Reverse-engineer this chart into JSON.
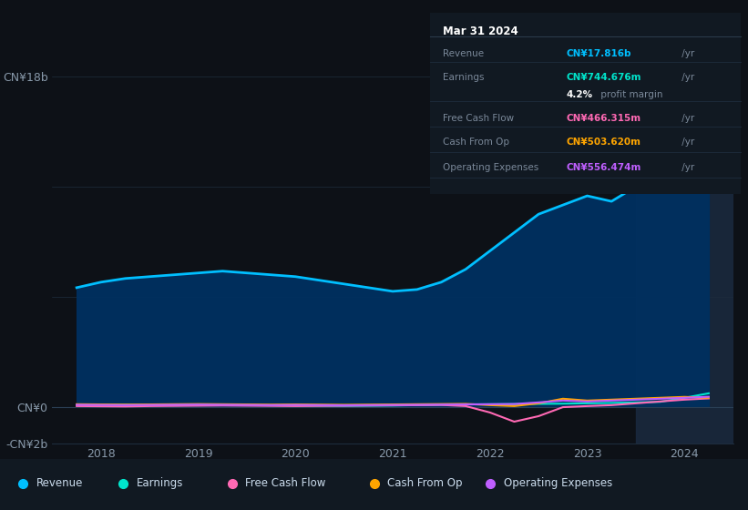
{
  "bg_color": "#0d1117",
  "plot_bg_color": "#0d1117",
  "tooltip": {
    "title": "Mar 31 2024",
    "rows": [
      {
        "label": "Revenue",
        "value": "CN¥17.816b",
        "color": "#00bfff"
      },
      {
        "label": "Earnings",
        "value": "CN¥744.676m",
        "color": "#00e5cc"
      },
      {
        "label": "",
        "value": "4.2% profit margin",
        "color": "#ffffff"
      },
      {
        "label": "Free Cash Flow",
        "value": "CN¥466.315m",
        "color": "#ff69b4"
      },
      {
        "label": "Cash From Op",
        "value": "CN¥503.620m",
        "color": "#ffa500"
      },
      {
        "label": "Operating Expenses",
        "value": "CN¥556.474m",
        "color": "#bf5fff"
      }
    ]
  },
  "ylim": [
    -2000000000,
    18000000000
  ],
  "ytick_labels": [
    "-CN¥2b",
    "CN¥0",
    "CN¥18b"
  ],
  "ytick_vals": [
    -2000000000,
    0,
    18000000000
  ],
  "xlim": [
    2017.5,
    2024.5
  ],
  "xticks": [
    2018,
    2019,
    2020,
    2021,
    2022,
    2023,
    2024
  ],
  "legend": [
    {
      "label": "Revenue",
      "color": "#00bfff"
    },
    {
      "label": "Earnings",
      "color": "#00e5cc"
    },
    {
      "label": "Free Cash Flow",
      "color": "#ff69b4"
    },
    {
      "label": "Cash From Op",
      "color": "#ffa500"
    },
    {
      "label": "Operating Expenses",
      "color": "#bf5fff"
    }
  ],
  "revenue_x": [
    2017.75,
    2018.0,
    2018.25,
    2018.5,
    2018.75,
    2019.0,
    2019.25,
    2019.5,
    2019.75,
    2020.0,
    2020.25,
    2020.5,
    2020.75,
    2021.0,
    2021.25,
    2021.5,
    2021.75,
    2022.0,
    2022.25,
    2022.5,
    2022.75,
    2023.0,
    2023.25,
    2023.5,
    2023.75,
    2024.0,
    2024.25
  ],
  "revenue_y": [
    6500000000,
    6800000000,
    7000000000,
    7100000000,
    7200000000,
    7300000000,
    7400000000,
    7300000000,
    7200000000,
    7100000000,
    6900000000,
    6700000000,
    6500000000,
    6300000000,
    6400000000,
    6800000000,
    7500000000,
    8500000000,
    9500000000,
    10500000000,
    11000000000,
    11500000000,
    11200000000,
    12000000000,
    13500000000,
    16000000000,
    17816000000
  ],
  "revenue_color": "#00bfff",
  "revenue_fill": "#003060",
  "earnings_x": [
    2017.75,
    2018.0,
    2018.25,
    2018.5,
    2018.75,
    2019.0,
    2019.25,
    2019.5,
    2019.75,
    2020.0,
    2020.25,
    2020.5,
    2020.75,
    2021.0,
    2021.25,
    2021.5,
    2021.75,
    2022.0,
    2022.25,
    2022.5,
    2022.75,
    2023.0,
    2023.25,
    2023.5,
    2023.75,
    2024.0,
    2024.25
  ],
  "earnings_y": [
    100000000,
    120000000,
    130000000,
    110000000,
    90000000,
    100000000,
    110000000,
    100000000,
    90000000,
    80000000,
    70000000,
    60000000,
    70000000,
    80000000,
    100000000,
    120000000,
    140000000,
    150000000,
    160000000,
    170000000,
    180000000,
    200000000,
    220000000,
    250000000,
    280000000,
    500000000,
    744676000
  ],
  "earnings_color": "#00e5cc",
  "fcf_x": [
    2017.75,
    2018.0,
    2018.25,
    2018.5,
    2018.75,
    2019.0,
    2019.25,
    2019.5,
    2019.75,
    2020.0,
    2020.25,
    2020.5,
    2020.75,
    2021.0,
    2021.25,
    2021.5,
    2021.75,
    2022.0,
    2022.25,
    2022.5,
    2022.75,
    2023.0,
    2023.25,
    2023.5,
    2023.75,
    2024.0,
    2024.25
  ],
  "fcf_y": [
    50000000,
    40000000,
    30000000,
    50000000,
    60000000,
    70000000,
    80000000,
    70000000,
    60000000,
    50000000,
    60000000,
    70000000,
    80000000,
    90000000,
    100000000,
    110000000,
    50000000,
    -300000000,
    -800000000,
    -500000000,
    -10000000,
    50000000,
    100000000,
    200000000,
    300000000,
    400000000,
    466315000
  ],
  "fcf_color": "#ff69b4",
  "cfop_x": [
    2017.75,
    2018.0,
    2018.25,
    2018.5,
    2018.75,
    2019.0,
    2019.25,
    2019.5,
    2019.75,
    2020.0,
    2020.25,
    2020.5,
    2020.75,
    2021.0,
    2021.25,
    2021.5,
    2021.75,
    2022.0,
    2022.25,
    2022.5,
    2022.75,
    2023.0,
    2023.25,
    2023.5,
    2023.75,
    2024.0,
    2024.25
  ],
  "cfop_y": [
    150000000,
    140000000,
    130000000,
    140000000,
    150000000,
    160000000,
    150000000,
    140000000,
    130000000,
    140000000,
    130000000,
    120000000,
    130000000,
    140000000,
    150000000,
    160000000,
    170000000,
    100000000,
    50000000,
    200000000,
    450000000,
    350000000,
    400000000,
    450000000,
    500000000,
    550000000,
    503620000
  ],
  "cfop_color": "#ffa500",
  "opex_x": [
    2017.75,
    2018.0,
    2018.25,
    2018.5,
    2018.75,
    2019.0,
    2019.25,
    2019.5,
    2019.75,
    2020.0,
    2020.25,
    2020.5,
    2020.75,
    2021.0,
    2021.25,
    2021.5,
    2021.75,
    2022.0,
    2022.25,
    2022.5,
    2022.75,
    2023.0,
    2023.25,
    2023.5,
    2023.75,
    2024.0,
    2024.25
  ],
  "opex_y": [
    120000000,
    110000000,
    100000000,
    110000000,
    120000000,
    130000000,
    120000000,
    110000000,
    100000000,
    110000000,
    100000000,
    90000000,
    100000000,
    110000000,
    120000000,
    130000000,
    140000000,
    150000000,
    160000000,
    250000000,
    350000000,
    300000000,
    350000000,
    400000000,
    450000000,
    500000000,
    556474000
  ],
  "opex_color": "#bf5fff",
  "shaded_x_start": 2023.5,
  "shaded_x_end": 2024.5,
  "grid_color": "#1e2d3d",
  "zero_line_color": "#2a3f55",
  "tooltip_bg": "#111922",
  "tooltip_border": "#2a3a4a",
  "legend_bg": "#111922",
  "label_color": "#7a8899",
  "tick_color": "#8899aa"
}
